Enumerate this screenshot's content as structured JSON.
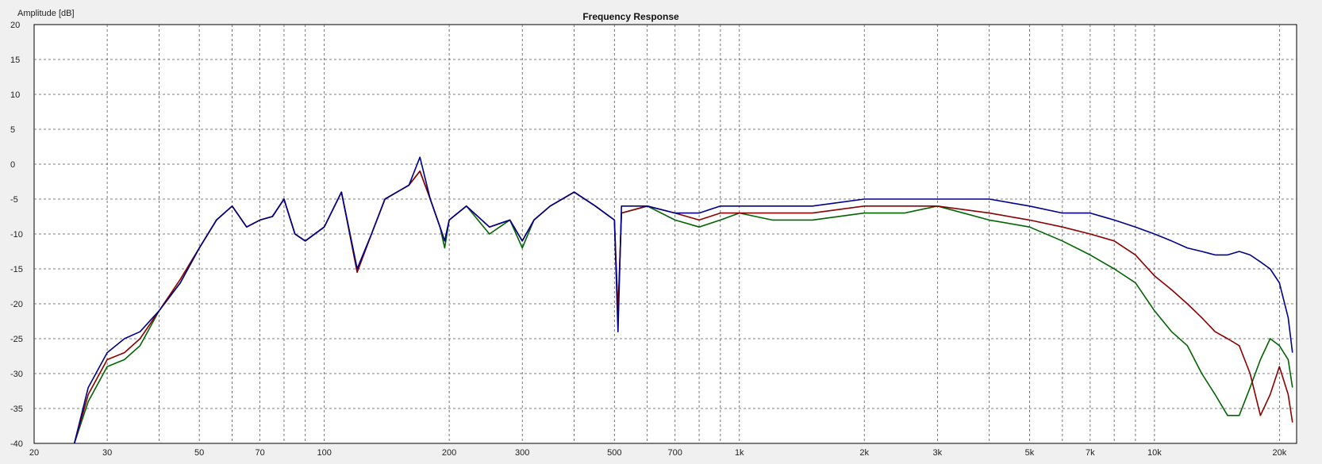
{
  "chart_data": {
    "type": "line",
    "title": "Frequency Response",
    "ylabel": "Amplitude [dB]",
    "xlabel": "",
    "x_scale": "log",
    "xlim": [
      20,
      22000
    ],
    "ylim": [
      -40,
      20
    ],
    "grid": true,
    "legend": "none",
    "y_ticks": [
      "20",
      "15",
      "10",
      "5",
      "0",
      "-5",
      "-10",
      "-15",
      "-20",
      "-25",
      "-30",
      "-35",
      "-40"
    ],
    "x_ticks": [
      {
        "v": 20,
        "label": "20"
      },
      {
        "v": 30,
        "label": "30"
      },
      {
        "v": 50,
        "label": "50"
      },
      {
        "v": 70,
        "label": "70"
      },
      {
        "v": 100,
        "label": "100"
      },
      {
        "v": 200,
        "label": "200"
      },
      {
        "v": 300,
        "label": "300"
      },
      {
        "v": 500,
        "label": "500"
      },
      {
        "v": 700,
        "label": "700"
      },
      {
        "v": 1000,
        "label": "1k"
      },
      {
        "v": 2000,
        "label": "2k"
      },
      {
        "v": 3000,
        "label": "3k"
      },
      {
        "v": 5000,
        "label": "5k"
      },
      {
        "v": 7000,
        "label": "7k"
      },
      {
        "v": 10000,
        "label": "10k"
      },
      {
        "v": 20000,
        "label": "20k"
      }
    ],
    "series": [
      {
        "color": "#006400",
        "x": [
          25,
          27,
          30,
          33,
          36,
          40,
          45,
          50,
          55,
          60,
          65,
          70,
          75,
          80,
          85,
          90,
          100,
          110,
          120,
          130,
          140,
          160,
          170,
          180,
          190,
          195,
          200,
          220,
          250,
          280,
          300,
          320,
          350,
          400,
          450,
          500,
          510,
          520,
          600,
          700,
          800,
          900,
          1000,
          1200,
          1500,
          2000,
          2500,
          3000,
          4000,
          5000,
          6000,
          7000,
          8000,
          9000,
          10000,
          11000,
          12000,
          13000,
          14000,
          15000,
          16000,
          17000,
          18000,
          19000,
          20000,
          21000,
          21500
        ],
        "y": [
          -40,
          -34,
          -29,
          -28,
          -26,
          -21,
          -17,
          -12,
          -8,
          -6,
          -9,
          -8,
          -7.5,
          -5,
          -10,
          -11,
          -9,
          -4,
          -15,
          -10,
          -5,
          -3,
          -1,
          -5,
          -9,
          -12,
          -8,
          -6,
          -10,
          -8,
          -12,
          -8,
          -6,
          -4,
          -6,
          -8,
          -22,
          -7,
          -6,
          -8,
          -9,
          -8,
          -7,
          -8,
          -8,
          -7,
          -7,
          -6,
          -8,
          -9,
          -11,
          -13,
          -15,
          -17,
          -21,
          -24,
          -26,
          -30,
          -33,
          -36,
          -36,
          -32,
          -28,
          -25,
          -26,
          -28,
          -32
        ]
      },
      {
        "color": "#8b0000",
        "x": [
          25,
          27,
          30,
          33,
          36,
          40,
          45,
          50,
          55,
          60,
          65,
          70,
          75,
          80,
          85,
          90,
          100,
          110,
          120,
          130,
          140,
          160,
          170,
          180,
          190,
          195,
          200,
          220,
          250,
          280,
          300,
          320,
          350,
          400,
          450,
          500,
          510,
          520,
          600,
          700,
          800,
          900,
          1000,
          1200,
          1500,
          2000,
          2500,
          3000,
          4000,
          5000,
          6000,
          7000,
          8000,
          9000,
          10000,
          11000,
          12000,
          13000,
          14000,
          15000,
          16000,
          17000,
          18000,
          19000,
          20000,
          21000,
          21500
        ],
        "y": [
          -40,
          -33,
          -28,
          -27,
          -25,
          -21,
          -16.5,
          -12,
          -8,
          -6,
          -9,
          -8,
          -7.5,
          -5,
          -10,
          -11,
          -9,
          -4,
          -15.5,
          -10,
          -5,
          -3,
          -1,
          -5,
          -9,
          -11,
          -8,
          -6,
          -9,
          -8,
          -11,
          -8,
          -6,
          -4,
          -6,
          -8,
          -21,
          -7,
          -6,
          -7,
          -8,
          -7,
          -7,
          -7,
          -7,
          -6,
          -6,
          -6,
          -7,
          -8,
          -9,
          -10,
          -11,
          -13,
          -16,
          -18,
          -20,
          -22,
          -24,
          -25,
          -26,
          -30,
          -36,
          -33,
          -29,
          -33,
          -37
        ]
      },
      {
        "color": "#00008b",
        "x": [
          25,
          27,
          30,
          33,
          36,
          40,
          45,
          50,
          55,
          60,
          65,
          70,
          75,
          80,
          85,
          90,
          100,
          110,
          120,
          130,
          140,
          160,
          170,
          180,
          190,
          195,
          200,
          220,
          250,
          280,
          300,
          320,
          350,
          400,
          450,
          500,
          510,
          520,
          600,
          700,
          800,
          900,
          1000,
          1200,
          1500,
          2000,
          2500,
          3000,
          4000,
          5000,
          6000,
          7000,
          8000,
          9000,
          10000,
          11000,
          12000,
          13000,
          14000,
          15000,
          16000,
          17000,
          18000,
          19000,
          20000,
          21000,
          21500
        ],
        "y": [
          -40,
          -32,
          -27,
          -25,
          -24,
          -21,
          -17,
          -12,
          -8,
          -6,
          -9,
          -8,
          -7.5,
          -5,
          -10,
          -11,
          -9,
          -4,
          -15,
          -10,
          -5,
          -3,
          1,
          -5,
          -9,
          -11,
          -8,
          -6,
          -9,
          -8,
          -11,
          -8,
          -6,
          -4,
          -6,
          -8,
          -24,
          -6,
          -6,
          -7,
          -7,
          -6,
          -6,
          -6,
          -6,
          -5,
          -5,
          -5,
          -5,
          -6,
          -7,
          -7,
          -8,
          -9,
          -10,
          -11,
          -12,
          -12.5,
          -13,
          -13,
          -12.5,
          -13,
          -14,
          -15,
          -17,
          -22,
          -27
        ]
      }
    ]
  }
}
